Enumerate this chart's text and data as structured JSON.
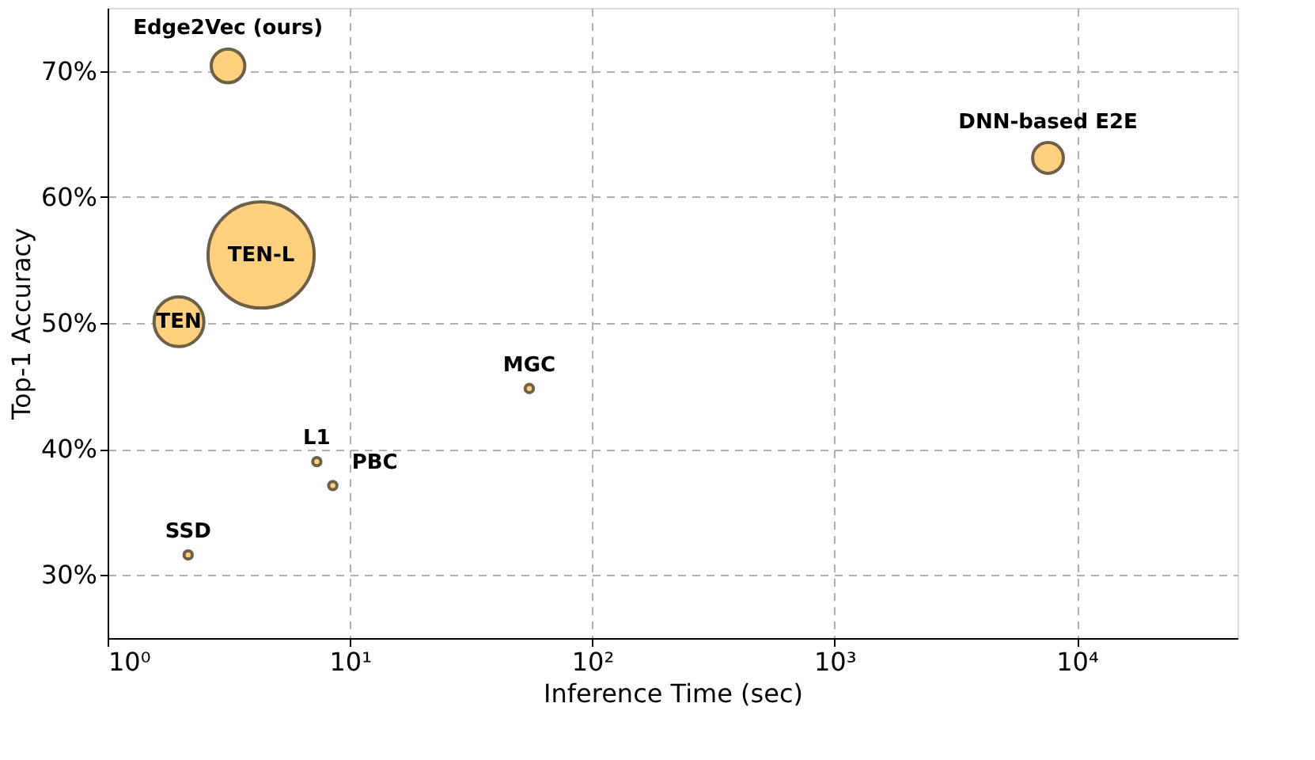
{
  "chart_data": {
    "type": "bubble",
    "xlabel": "Inference Time (sec)",
    "ylabel": "Top-1 Accuracy",
    "log": "x",
    "x": [
      3.14,
      4.3,
      1.97,
      7600,
      55,
      7.3,
      8.5,
      2.15
    ],
    "series": [
      {
        "color": "#ffd17f",
        "values": [
          70.4,
          55.4,
          50.1,
          63.1,
          44.8,
          39.0,
          37.1,
          31.6
        ],
        "sizes": [
          0.1,
          1,
          0.22,
          0.084,
          0.006,
          0.006,
          0.006,
          0.006
        ]
      }
    ],
    "xlim": [
      1,
      46000
    ],
    "xticks": [
      {
        "value": 1,
        "label": "10⁰"
      },
      {
        "value": 10,
        "label": "10¹"
      },
      {
        "value": 100,
        "label": "10²"
      },
      {
        "value": 1000,
        "label": "10³"
      },
      {
        "value": 10000,
        "label": "10⁴"
      }
    ],
    "ylim": [
      25,
      75
    ],
    "yticks": [
      {
        "value": 30,
        "label": "30%"
      },
      {
        "value": 40,
        "label": "40%"
      },
      {
        "value": 50,
        "label": "50%"
      },
      {
        "value": 60,
        "label": "60%"
      },
      {
        "value": 70,
        "label": "70%"
      }
    ],
    "grid": true,
    "annotations": [
      {
        "text": "Edge2Vec (ours)",
        "x": 3.14,
        "y": 70.4
      },
      {
        "text": "TEN-L",
        "x": 4.3,
        "y": 55.4
      },
      {
        "text": "TEN",
        "x": 1.97,
        "y": 50.1
      },
      {
        "text": "DNN-based E2E",
        "x": 7600,
        "y": 63.1
      },
      {
        "text": "MGC",
        "x": 55,
        "y": 44.8
      },
      {
        "text": "L1",
        "x": 7.3,
        "y": 39.0
      },
      {
        "text": "PBC",
        "x": 8.5,
        "y": 37.1
      },
      {
        "text": "SSD",
        "x": 2.15,
        "y": 31.6
      }
    ]
  }
}
